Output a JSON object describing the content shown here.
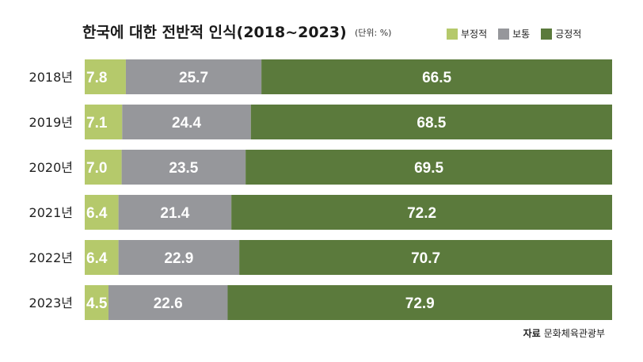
{
  "header": {
    "title": "한국에 대한 전반적 인식(2018~2023)",
    "unit": "(단위: %)"
  },
  "source": {
    "label": "자료",
    "text": "문화체육관광부"
  },
  "colors": {
    "negative": "#b5c96b",
    "neutral": "#96979b",
    "positive": "#5b7a3c"
  },
  "chart_data": {
    "type": "bar",
    "orientation": "horizontal",
    "stacked": true,
    "title": "한국에 대한 전반적 인식(2018~2023)",
    "categories": [
      "2018년",
      "2019년",
      "2020년",
      "2021년",
      "2022년",
      "2023년"
    ],
    "series": [
      {
        "name": "부정적",
        "color": "#b5c96b",
        "values": [
          7.8,
          7.1,
          7.0,
          6.4,
          6.4,
          4.5
        ]
      },
      {
        "name": "보통",
        "color": "#96979b",
        "values": [
          25.7,
          24.4,
          23.5,
          21.4,
          22.9,
          22.6
        ]
      },
      {
        "name": "긍정적",
        "color": "#5b7a3c",
        "values": [
          66.5,
          68.5,
          69.5,
          72.2,
          70.7,
          72.9
        ]
      }
    ],
    "xlim": [
      0,
      100
    ],
    "grid": false,
    "legend_position": "top-right"
  }
}
